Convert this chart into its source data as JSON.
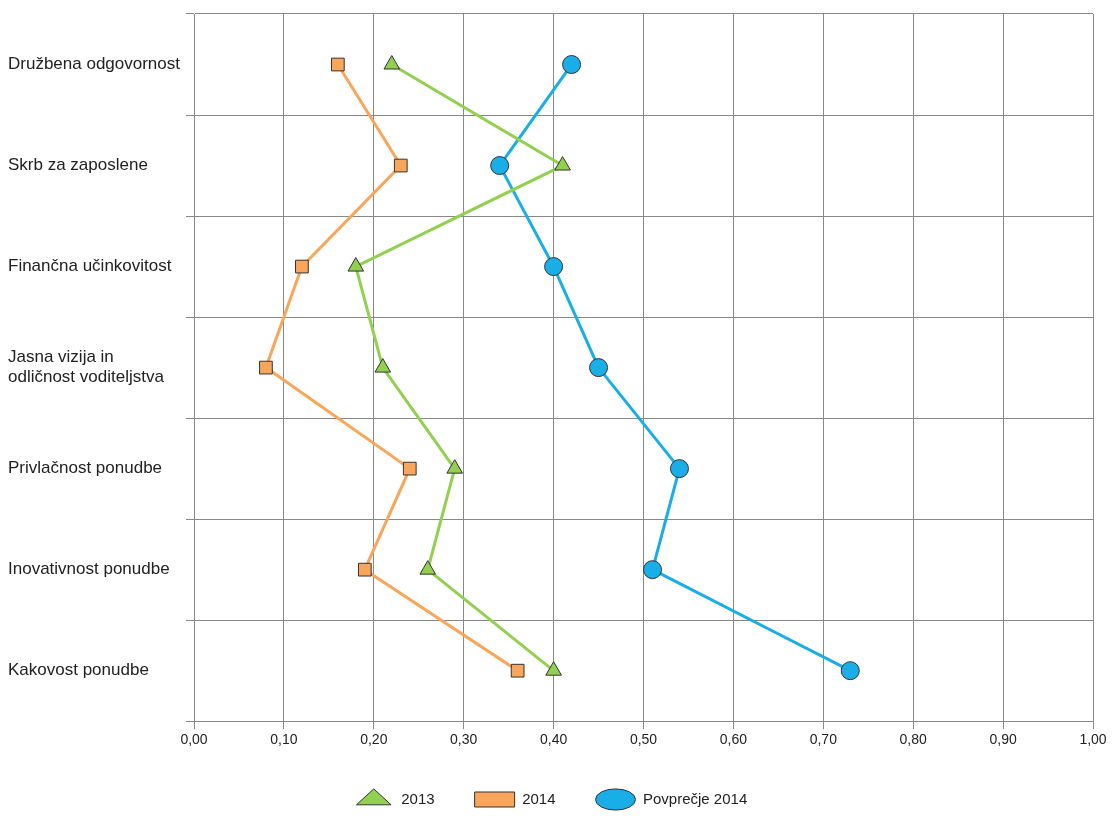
{
  "chart_data": {
    "type": "line",
    "orientation": "horizontal",
    "categories": [
      "Družbena odgovornost",
      "Skrb za zaposlene",
      "Finančna učinkovitost",
      "Jasna vizija in odličnost voditeljstva",
      "Privlačnost ponudbe",
      "Inovativnost ponudbe",
      "Kakovost ponudbe"
    ],
    "series": [
      {
        "name": "2013",
        "color": "#92d050",
        "marker": "triangle",
        "values": [
          0.22,
          0.41,
          0.18,
          0.21,
          0.29,
          0.26,
          0.4
        ]
      },
      {
        "name": "2014",
        "color": "#f9a65a",
        "marker": "square",
        "values": [
          0.16,
          0.23,
          0.12,
          0.08,
          0.24,
          0.19,
          0.36
        ]
      },
      {
        "name": "Povprečje 2014",
        "color": "#1aaee8",
        "marker": "circle",
        "values": [
          0.42,
          0.34,
          0.4,
          0.45,
          0.54,
          0.51,
          0.73
        ]
      }
    ],
    "xlim": [
      0,
      1
    ],
    "xticks": [
      {
        "value": 0,
        "label": "0,00"
      },
      {
        "value": 0.1,
        "label": "0,10"
      },
      {
        "value": 0.2,
        "label": "0,20"
      },
      {
        "value": 0.3,
        "label": "0,30"
      },
      {
        "value": 0.4,
        "label": "0,40"
      },
      {
        "value": 0.5,
        "label": "0,50"
      },
      {
        "value": 0.6,
        "label": "0,60"
      },
      {
        "value": 0.7,
        "label": "0,70"
      },
      {
        "value": 0.8,
        "label": "0,80"
      },
      {
        "value": 0.9,
        "label": "0,90"
      },
      {
        "value": 1,
        "label": "1,00"
      }
    ],
    "grid": true,
    "legend": "bottom",
    "line_style": "solid"
  }
}
